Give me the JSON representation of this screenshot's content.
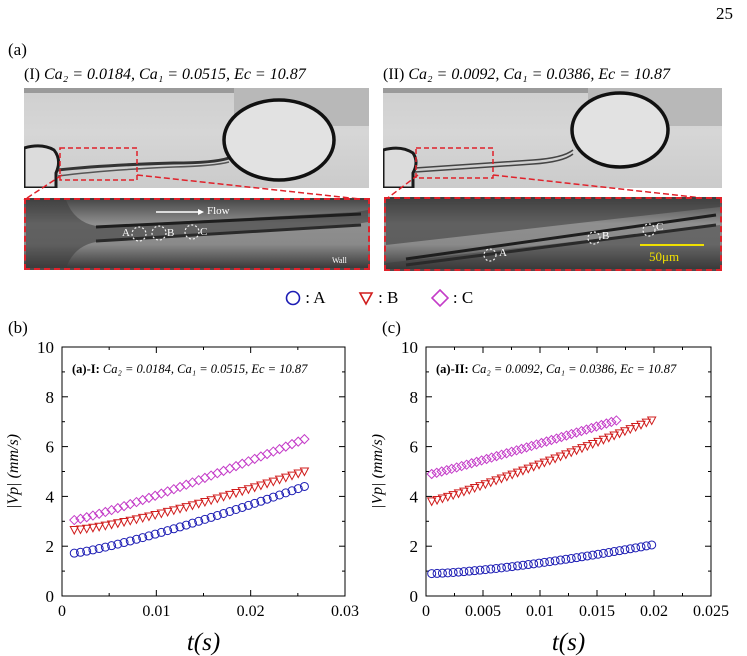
{
  "page_number": "25",
  "panel_label_a": "(a)",
  "panel_label_b": "(b)",
  "panel_label_c": "(c)",
  "panel_I": {
    "roman": "(I)",
    "caption": "Ca₂ = 0.0184,  Ca₁ = 0.0515,  Ec = 10.87",
    "zoom_labels": {
      "flow": "Flow",
      "wall": "Wall",
      "A": "A",
      "B": "B",
      "C": "C"
    }
  },
  "panel_II": {
    "roman": "(II)",
    "caption": "Ca₂ = 0.0092,  Ca₁ = 0.0386,  Ec = 10.87",
    "zoom_labels": {
      "A": "A",
      "B": "B",
      "C": "C",
      "scale": "50μm"
    }
  },
  "legend": [
    {
      "marker": "circle",
      "label": ": A",
      "color": "#1c1cb4"
    },
    {
      "marker": "triangle-down",
      "label": ": B",
      "color": "#d01c1c"
    },
    {
      "marker": "diamond",
      "label": ": C",
      "color": "#c43cc8"
    }
  ],
  "chart_data": [
    {
      "type": "scatter",
      "annotation_bold": "(a)-I:",
      "annotation": "Ca₂ = 0.0184, Ca₁ = 0.0515, Ec = 10.87",
      "xlabel": "t(s)",
      "ylabel": "|Vp| (mm/s)",
      "xlim": [
        0,
        0.03
      ],
      "ylim": [
        0,
        10
      ],
      "xticks": [
        "0",
        "0.01",
        "0.02",
        "0.03"
      ],
      "yticks": [
        "0",
        "2",
        "4",
        "6",
        "8",
        "10"
      ],
      "series": [
        {
          "name": "A",
          "x_start": 0.0013,
          "x_end": 0.0257,
          "y_start": 1.72,
          "y_end": 4.4,
          "points": 38,
          "curve": 1.2
        },
        {
          "name": "B",
          "x_start": 0.0013,
          "x_end": 0.0257,
          "y_start": 2.65,
          "y_end": 5.0,
          "points": 38,
          "curve": 1.3
        },
        {
          "name": "C",
          "x_start": 0.0013,
          "x_end": 0.0257,
          "y_start": 3.05,
          "y_end": 6.3,
          "points": 38,
          "curve": 1.15
        }
      ]
    },
    {
      "type": "scatter",
      "annotation_bold": "(a)-II:",
      "annotation": "Ca₂ = 0.0092, Ca₁ = 0.0386, Ec = 10.87",
      "xlabel": "t(s)",
      "ylabel": "|Vp| (mm/s)",
      "xlim": [
        0,
        0.025
      ],
      "ylim": [
        0,
        10
      ],
      "xticks": [
        "0",
        "0.005",
        "0.01",
        "0.015",
        "0.02",
        "0.025"
      ],
      "yticks": [
        "0",
        "2",
        "4",
        "6",
        "8",
        "10"
      ],
      "series": [
        {
          "name": "A",
          "x_start": 0.0005,
          "x_end": 0.0198,
          "y_start": 0.9,
          "y_end": 2.05,
          "points": 42,
          "curve": 1.4
        },
        {
          "name": "B",
          "x_start": 0.0005,
          "x_end": 0.0198,
          "y_start": 3.8,
          "y_end": 7.05,
          "points": 42,
          "curve": 1.1
        },
        {
          "name": "C",
          "x_start": 0.0005,
          "x_end": 0.0167,
          "y_start": 4.9,
          "y_end": 7.05,
          "points": 38,
          "curve": 1.05
        }
      ]
    }
  ]
}
